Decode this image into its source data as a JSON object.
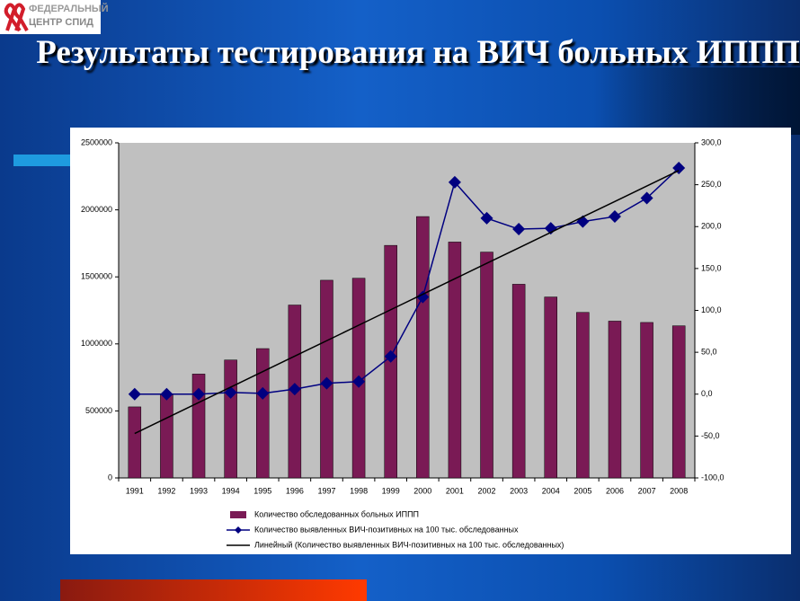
{
  "logo": [
    "ФЕДЕРАЛЬНЫЙ",
    "ЦЕНТР СПИД"
  ],
  "chart_data": {
    "type": "bar_line",
    "title": "Результаты тестирования на ВИЧ больных ИППП",
    "categories": [
      "1991",
      "1992",
      "1993",
      "1994",
      "1995",
      "1996",
      "1997",
      "1998",
      "1999",
      "2000",
      "2001",
      "2002",
      "2003",
      "2004",
      "2005",
      "2006",
      "2007",
      "2008"
    ],
    "series": [
      {
        "name": "Количество обследованных больных ИППП",
        "color": "#7a1a55",
        "kind": "bar",
        "axis": "y",
        "values": [
          530000,
          620000,
          775000,
          880000,
          965000,
          1290000,
          1475000,
          1490000,
          1735000,
          1950000,
          1760000,
          1685000,
          1445000,
          1350000,
          1235000,
          1170000,
          1160000,
          1135000
        ]
      },
      {
        "name": "Количество выявленных ВИЧ-позитивных на 100 тыс. обследованных",
        "color": "#000080",
        "kind": "line",
        "marker": "diamond",
        "axis": "y2",
        "values": [
          0,
          0,
          0,
          2,
          1,
          6,
          13,
          15,
          45,
          116,
          253,
          210,
          197,
          198,
          206,
          212,
          234,
          270
        ]
      },
      {
        "name": "Линейный (Количество выявленных ВИЧ-позитивных на 100 тыс. обследованных)",
        "color": "#000000",
        "kind": "line",
        "axis": "y2",
        "values": [
          -47,
          -28.5,
          -10,
          8.4,
          26.9,
          45.4,
          63.8,
          82.3,
          100.8,
          119.2,
          137.7,
          156.2,
          174.6,
          193.1,
          211.6,
          230,
          248.5,
          267
        ]
      }
    ],
    "ylim": [
      0,
      2500000
    ],
    "yticks": [
      0,
      500000,
      1000000,
      1500000,
      2000000,
      2500000
    ],
    "y2lim": [
      -100,
      300
    ],
    "y2ticks": [
      {
        "value": -100,
        "label": "-100,0"
      },
      {
        "value": -50,
        "label": "-50,0"
      },
      {
        "value": 0,
        "label": "0,0"
      },
      {
        "value": 50,
        "label": "50,0"
      },
      {
        "value": 100,
        "label": "100,0"
      },
      {
        "value": 150,
        "label": "150,0"
      },
      {
        "value": 200,
        "label": "200,0"
      },
      {
        "value": 250,
        "label": "250,0"
      },
      {
        "value": 300,
        "label": "300,0"
      }
    ],
    "grid": false,
    "legend": "bottom"
  }
}
